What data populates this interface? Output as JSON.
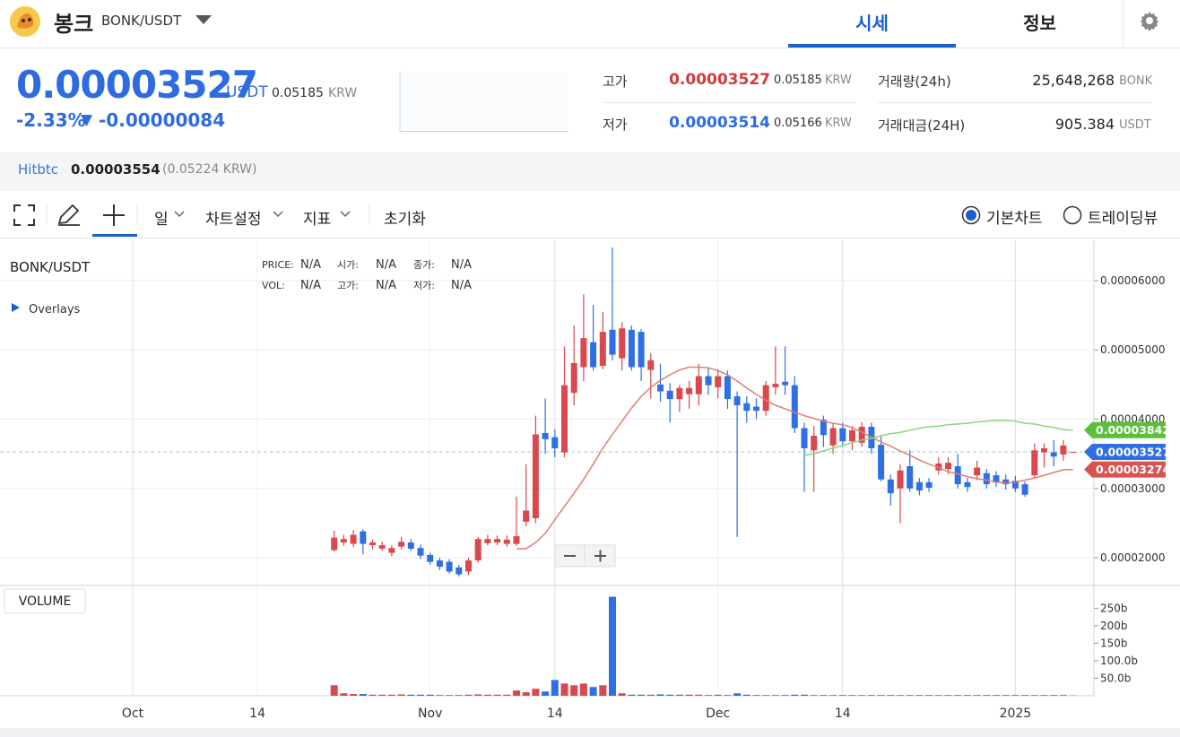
{
  "header": {
    "logo_name": "봉크",
    "pair": "BONK/USDT",
    "tabs": [
      "시세",
      "정보"
    ]
  },
  "ticker": {
    "price": "0.00003527",
    "quote": "USDT",
    "krw": "0.05185",
    "krw_unit": "KRW",
    "change_pct": "-2.33%",
    "arrow": "▼",
    "change": "-0.00000084",
    "stats": [
      {
        "label": "고가",
        "value": "0.00003527",
        "krw": "0.05185",
        "unit": "KRW"
      },
      {
        "label": "저가",
        "value": "0.00003514",
        "krw": "0.05166",
        "unit": "KRW"
      }
    ],
    "volume": [
      {
        "label": "거래량(24h)",
        "value": "25,648,268",
        "unit": "BONK"
      },
      {
        "label": "거래대금(24H)",
        "value": "905.384",
        "unit": "USDT"
      }
    ]
  },
  "exchange": {
    "name": "Hitbtc",
    "price": "0.00003554",
    "krw": "(0.05224 KRW)"
  },
  "toolbar": {
    "items": [
      "일",
      "차트설정",
      "지표",
      "초기화"
    ],
    "modes": [
      "기본차트",
      "트레이딩뷰"
    ]
  },
  "chart_data": {
    "type": "candlestick",
    "title": "BONK/USDT",
    "overlay_label": "Overlays",
    "volume_title": "VOLUME",
    "info": [
      [
        "PRICE:",
        "N/A",
        "시가:",
        "N/A",
        "종가:",
        "N/A"
      ],
      [
        "VOL:",
        "N/A",
        "고가:",
        "N/A",
        "저가:",
        "N/A"
      ]
    ],
    "categories": [
      "Oct",
      null,
      null,
      null,
      null,
      null,
      null,
      null,
      null,
      null,
      null,
      null,
      null,
      "14",
      null,
      null,
      null,
      null,
      null,
      null,
      null,
      null,
      null,
      null,
      null,
      null,
      null,
      null,
      null,
      null,
      null,
      "Nov",
      null,
      null,
      null,
      null,
      null,
      null,
      null,
      null,
      null,
      null,
      null,
      null,
      "14",
      null,
      null,
      null,
      null,
      null,
      null,
      null,
      null,
      null,
      null,
      null,
      null,
      null,
      null,
      null,
      null,
      "Dec",
      null,
      null,
      null,
      null,
      null,
      null,
      null,
      null,
      null,
      null,
      null,
      null,
      "14",
      null,
      null,
      null,
      null,
      null,
      null,
      null,
      null,
      null,
      null,
      null,
      null,
      null,
      null,
      null,
      null,
      null,
      "2025",
      null,
      null,
      null,
      null,
      null,
      null
    ],
    "open": [
      null,
      null,
      null,
      null,
      null,
      null,
      null,
      null,
      null,
      null,
      null,
      null,
      null,
      null,
      null,
      null,
      null,
      null,
      null,
      null,
      null,
      2.11e-05,
      2.22e-05,
      2.2e-05,
      2.38e-05,
      2.18e-05,
      2.13e-05,
      2.07e-05,
      2.16e-05,
      2.22e-05,
      2.14e-05,
      2.04e-05,
      1.96e-05,
      1.94e-05,
      1.86e-05,
      1.8e-05,
      1.96e-05,
      2.21e-05,
      2.22e-05,
      2.2e-05,
      2.2e-05,
      2.52e-05,
      2.57e-05,
      3.8e-05,
      3.74e-05,
      3.52e-05,
      4.38e-05,
      4.75e-05,
      5.11e-05,
      4.77e-05,
      5.29e-05,
      4.88e-05,
      5.29e-05,
      5.26e-05,
      4.71e-05,
      4.5e-05,
      4.41e-05,
      4.29e-05,
      4.36e-05,
      4.36e-05,
      4.62e-05,
      4.46e-05,
      4.62e-05,
      4.33e-05,
      4.23e-05,
      4.18e-05,
      4.12e-05,
      4.46e-05,
      4.54e-05,
      4.49e-05,
      3.87e-05,
      3.55e-05,
      3.99e-05,
      3.62e-05,
      3.87e-05,
      3.68e-05,
      3.66e-05,
      3.89e-05,
      3.63e-05,
      3.13e-05,
      3e-05,
      3.32e-05,
      3.09e-05,
      3.09e-05,
      3.26e-05,
      3.28e-05,
      3.32e-05,
      3.09e-05,
      3.19e-05,
      3.22e-05,
      3.19e-05,
      3.13e-05,
      3.11e-05,
      3.06e-05,
      3.19e-05,
      3.52e-05,
      3.52e-05,
      3.49e-05,
      3.514e-05
    ],
    "high": [
      null,
      null,
      null,
      null,
      null,
      null,
      null,
      null,
      null,
      null,
      null,
      null,
      null,
      null,
      null,
      null,
      null,
      null,
      null,
      null,
      null,
      2.39e-05,
      2.33e-05,
      2.4e-05,
      2.41e-05,
      2.26e-05,
      2.23e-05,
      2.18e-05,
      2.3e-05,
      2.27e-05,
      2.19e-05,
      2.07e-05,
      2e-05,
      1.98e-05,
      1.9e-05,
      2e-05,
      2.3e-05,
      2.33e-05,
      2.32e-05,
      2.32e-05,
      2.88e-05,
      3.35e-05,
      4.05e-05,
      4.3e-05,
      3.85e-05,
      5.05e-05,
      5.35e-05,
      5.8e-05,
      5.65e-05,
      5.55e-05,
      6.48e-05,
      5.4e-05,
      5.35e-05,
      5.3e-05,
      4.95e-05,
      4.8e-05,
      4.52e-05,
      4.5e-05,
      4.55e-05,
      4.8e-05,
      4.75e-05,
      4.72e-05,
      4.7e-05,
      4.4e-05,
      4.33e-05,
      4.3e-05,
      4.55e-05,
      5.05e-05,
      5.05e-05,
      4.62e-05,
      3.95e-05,
      3.9e-05,
      4.05e-05,
      3.95e-05,
      3.95e-05,
      3.9e-05,
      3.96e-05,
      3.95e-05,
      3.75e-05,
      3.2e-05,
      3.35e-05,
      3.55e-05,
      3.15e-05,
      3.15e-05,
      3.45e-05,
      3.45e-05,
      3.5e-05,
      3.15e-05,
      3.4e-05,
      3.28e-05,
      3.25e-05,
      3.2e-05,
      3.18e-05,
      3.1e-05,
      3.65e-05,
      3.65e-05,
      3.7e-05,
      3.7e-05,
      3.527e-05
    ],
    "low": [
      null,
      null,
      null,
      null,
      null,
      null,
      null,
      null,
      null,
      null,
      null,
      null,
      null,
      null,
      null,
      null,
      null,
      null,
      null,
      null,
      null,
      2.09e-05,
      2.17e-05,
      2.15e-05,
      2.05e-05,
      2.12e-05,
      2.1e-05,
      2.02e-05,
      2.12e-05,
      2.1e-05,
      1.98e-05,
      1.9e-05,
      1.82e-05,
      1.77e-05,
      1.73e-05,
      1.75e-05,
      1.93e-05,
      2.18e-05,
      2.18e-05,
      2.16e-05,
      2.17e-05,
      2.45e-05,
      2.5e-05,
      3.5e-05,
      3.45e-05,
      3.45e-05,
      4.2e-05,
      4.55e-05,
      4.7e-05,
      4.72e-05,
      4.85e-05,
      4.7e-05,
      4.7e-05,
      4.55e-05,
      4.3e-05,
      4.25e-05,
      3.95e-05,
      4.1e-05,
      4.15e-05,
      4.2e-05,
      4.35e-05,
      4.3e-05,
      4.15e-05,
      2.3e-05,
      3.95e-05,
      4e-05,
      4.05e-05,
      4.35e-05,
      4.35e-05,
      3.8e-05,
      2.95e-05,
      2.95e-05,
      3.6e-05,
      3.5e-05,
      3.6e-05,
      3.55e-05,
      3.6e-05,
      3.5e-05,
      3.1e-05,
      2.75e-05,
      2.5e-05,
      2.95e-05,
      2.9e-05,
      2.95e-05,
      3.2e-05,
      3.2e-05,
      3e-05,
      2.95e-05,
      3.12e-05,
      3e-05,
      3.02e-05,
      2.98e-05,
      2.95e-05,
      2.88e-05,
      3.15e-05,
      3.3e-05,
      3.32e-05,
      3.4e-05,
      3.514e-05
    ],
    "close": [
      null,
      null,
      null,
      null,
      null,
      null,
      null,
      null,
      null,
      null,
      null,
      null,
      null,
      null,
      null,
      null,
      null,
      null,
      null,
      null,
      null,
      2.29e-05,
      2.27e-05,
      2.33e-05,
      2.2e-05,
      2.22e-05,
      2.18e-05,
      2.14e-05,
      2.23e-05,
      2.13e-05,
      2.03e-05,
      1.94e-05,
      1.87e-05,
      1.8e-05,
      1.76e-05,
      1.96e-05,
      2.27e-05,
      2.27e-05,
      2.27e-05,
      2.26e-05,
      2.31e-05,
      2.68e-05,
      3.78e-05,
      3.71e-05,
      3.58e-05,
      4.49e-05,
      4.81e-05,
      5.17e-05,
      4.75e-05,
      5.26e-05,
      4.93e-05,
      5.31e-05,
      4.75e-05,
      4.75e-05,
      4.85e-05,
      4.4e-05,
      4.29e-05,
      4.45e-05,
      4.45e-05,
      4.62e-05,
      4.49e-05,
      4.62e-05,
      4.29e-05,
      4.2e-05,
      4.12e-05,
      4.12e-05,
      4.49e-05,
      4.51e-05,
      4.49e-05,
      3.87e-05,
      3.58e-05,
      3.76e-05,
      3.77e-05,
      3.87e-05,
      3.68e-05,
      3.84e-05,
      3.89e-05,
      3.58e-05,
      3.13e-05,
      2.93e-05,
      3.26e-05,
      3e-05,
      2.97e-05,
      3.01e-05,
      3.36e-05,
      3.37e-05,
      3.06e-05,
      3.02e-05,
      3.3e-05,
      3.06e-05,
      3.09e-05,
      3.06e-05,
      3e-05,
      2.91e-05,
      3.55e-05,
      3.58e-05,
      3.46e-05,
      3.62e-05,
      3.527e-05
    ],
    "volume": [
      null,
      null,
      null,
      null,
      null,
      null,
      null,
      null,
      null,
      null,
      null,
      null,
      null,
      null,
      null,
      null,
      null,
      null,
      null,
      null,
      null,
      30,
      7,
      5,
      5,
      3,
      3,
      3,
      4,
      3,
      3,
      3,
      2,
      2,
      2,
      3,
      4,
      3,
      3,
      3,
      15,
      10,
      20,
      12,
      45,
      35,
      30,
      35,
      25,
      30,
      283,
      7,
      3,
      3,
      3,
      4,
      3,
      3,
      3,
      3,
      2,
      3,
      2,
      7,
      3,
      2,
      2,
      2,
      2,
      3,
      3,
      2,
      2,
      2,
      2,
      2,
      2,
      2,
      2,
      2,
      2,
      2,
      2,
      2,
      2,
      2,
      2,
      2,
      2,
      2,
      2,
      2,
      2,
      2,
      2,
      2,
      2,
      2,
      1
    ],
    "series": [
      {
        "color": "#e27d74",
        "values": [
          null,
          null,
          null,
          null,
          null,
          null,
          null,
          null,
          null,
          null,
          null,
          null,
          null,
          null,
          null,
          null,
          null,
          null,
          null,
          null,
          null,
          null,
          null,
          null,
          null,
          null,
          null,
          null,
          null,
          null,
          null,
          null,
          null,
          null,
          null,
          null,
          null,
          null,
          null,
          null,
          2.13e-05,
          2.13e-05,
          2.22e-05,
          2.35e-05,
          2.55e-05,
          2.74e-05,
          2.93e-05,
          3.13e-05,
          3.35e-05,
          3.58e-05,
          3.78e-05,
          3.97e-05,
          4.16e-05,
          4.33e-05,
          4.46e-05,
          4.56e-05,
          4.64e-05,
          4.71e-05,
          4.75e-05,
          4.75e-05,
          4.74e-05,
          4.7e-05,
          4.64e-05,
          4.55e-05,
          4.45e-05,
          4.36e-05,
          4.27e-05,
          4.2e-05,
          4.15e-05,
          4.1e-05,
          4.05e-05,
          4.01e-05,
          3.97e-05,
          3.94e-05,
          3.92e-05,
          3.88e-05,
          3.81e-05,
          3.74e-05,
          3.67e-05,
          3.61e-05,
          3.54e-05,
          3.48e-05,
          3.41e-05,
          3.35e-05,
          3.3e-05,
          3.24e-05,
          3.21e-05,
          3.17e-05,
          3.14e-05,
          3.12e-05,
          3.09e-05,
          3.08e-05,
          3.09e-05,
          3.12e-05,
          3.15e-05,
          3.19e-05,
          3.23e-05,
          3.27e-05,
          3.274e-05
        ]
      },
      {
        "color": "#8fd47a",
        "values": [
          null,
          null,
          null,
          null,
          null,
          null,
          null,
          null,
          null,
          null,
          null,
          null,
          null,
          null,
          null,
          null,
          null,
          null,
          null,
          null,
          null,
          null,
          null,
          null,
          null,
          null,
          null,
          null,
          null,
          null,
          null,
          null,
          null,
          null,
          null,
          null,
          null,
          null,
          null,
          null,
          null,
          null,
          null,
          null,
          null,
          null,
          null,
          null,
          null,
          null,
          null,
          null,
          null,
          null,
          null,
          null,
          null,
          null,
          null,
          null,
          null,
          null,
          null,
          null,
          null,
          null,
          null,
          null,
          null,
          null,
          3.48e-05,
          3.5e-05,
          3.54e-05,
          3.58e-05,
          3.62e-05,
          3.66e-05,
          3.7e-05,
          3.72e-05,
          3.76e-05,
          3.79e-05,
          3.81e-05,
          3.84e-05,
          3.87e-05,
          3.89e-05,
          3.9e-05,
          3.92e-05,
          3.93e-05,
          3.94e-05,
          3.96e-05,
          3.97e-05,
          3.98e-05,
          3.98e-05,
          3.97e-05,
          3.94e-05,
          3.93e-05,
          3.9e-05,
          3.88e-05,
          3.85e-05,
          3.842e-05
        ]
      }
    ],
    "price_tags": [
      {
        "value": 3.842e-05,
        "color": "#5cbf3a"
      },
      {
        "value": 3.527e-05,
        "color": "#2e6fe3"
      },
      {
        "value": 3.274e-05,
        "color": "#d9534f"
      }
    ],
    "up_color": "#d9484d",
    "down_color": "#2e6fe3",
    "ylim": [
      1.612e-05,
      6.582e-05
    ],
    "yticks": [
      {
        "value": 2e-05,
        "label": "0.00002000"
      },
      {
        "value": 3e-05,
        "label": "0.00003000"
      },
      {
        "value": 4e-05,
        "label": "0.00004000"
      },
      {
        "value": 5e-05,
        "label": "0.00005000"
      },
      {
        "value": 6e-05,
        "label": "0.00006000"
      }
    ],
    "volume_ylim": [
      0,
      310
    ],
    "volume_yticks": [
      {
        "value": 50,
        "label": "50.0b"
      },
      {
        "value": 100,
        "label": "100.0b"
      },
      {
        "value": 150,
        "label": "150b"
      },
      {
        "value": 200,
        "label": "200b"
      },
      {
        "value": 250,
        "label": "250b"
      }
    ],
    "grid": true
  }
}
